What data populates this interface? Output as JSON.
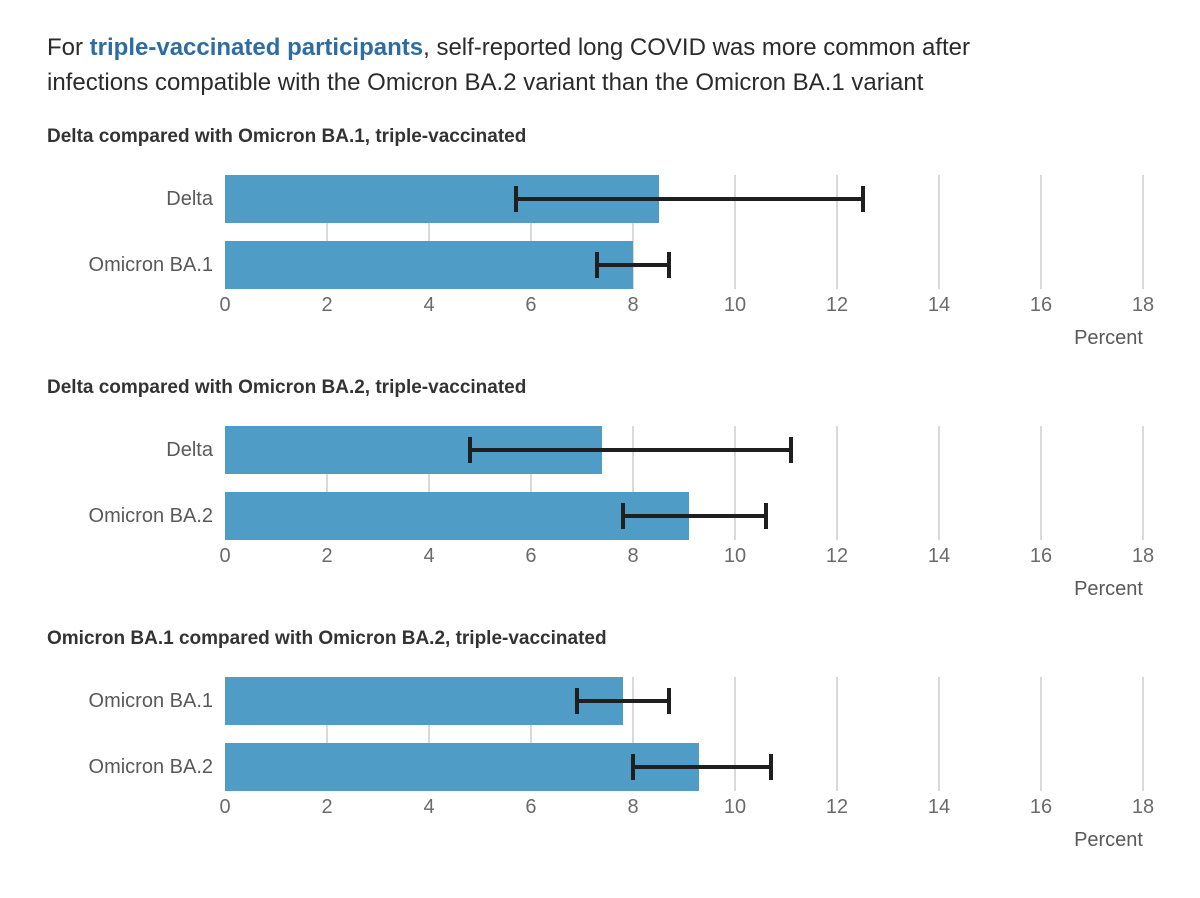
{
  "title": {
    "prefix": "For ",
    "highlight": "triple-vaccinated participants",
    "line1_rest": ", self-reported long COVID was more common after",
    "line2": "infections compatible with the Omicron BA.2 variant than the Omicron BA.1 variant"
  },
  "colors": {
    "bar": "#4f9dc7",
    "highlight_text": "#2e6da4",
    "gridline": "#d9d9d9",
    "error_bar": "#1f1f1f"
  },
  "axis": {
    "min": 0,
    "max": 18,
    "ticks": [
      0,
      2,
      4,
      6,
      8,
      10,
      12,
      14,
      16,
      18
    ],
    "label": "Percent"
  },
  "chart_data": [
    {
      "type": "bar",
      "orientation": "horizontal",
      "title": "Delta compared with Omicron BA.1, triple-vaccinated",
      "categories": [
        "Delta",
        "Omicron BA.1"
      ],
      "values": [
        8.5,
        8.0
      ],
      "ci_low": [
        5.7,
        7.3
      ],
      "ci_high": [
        12.5,
        8.7
      ],
      "xlabel": "Percent",
      "xlim": [
        0,
        18
      ],
      "grid": true,
      "legend": false
    },
    {
      "type": "bar",
      "orientation": "horizontal",
      "title": "Delta compared with Omicron BA.2, triple-vaccinated",
      "categories": [
        "Delta",
        "Omicron BA.2"
      ],
      "values": [
        7.4,
        9.1
      ],
      "ci_low": [
        4.8,
        7.8
      ],
      "ci_high": [
        11.1,
        10.6
      ],
      "xlabel": "Percent",
      "xlim": [
        0,
        18
      ],
      "grid": true,
      "legend": false
    },
    {
      "type": "bar",
      "orientation": "horizontal",
      "title": "Omicron BA.1 compared with Omicron BA.2, triple-vaccinated",
      "categories": [
        "Omicron BA.1",
        "Omicron BA.2"
      ],
      "values": [
        7.8,
        9.3
      ],
      "ci_low": [
        6.9,
        8.0
      ],
      "ci_high": [
        8.7,
        10.7
      ],
      "xlabel": "Percent",
      "xlim": [
        0,
        18
      ],
      "grid": true,
      "legend": false
    }
  ]
}
